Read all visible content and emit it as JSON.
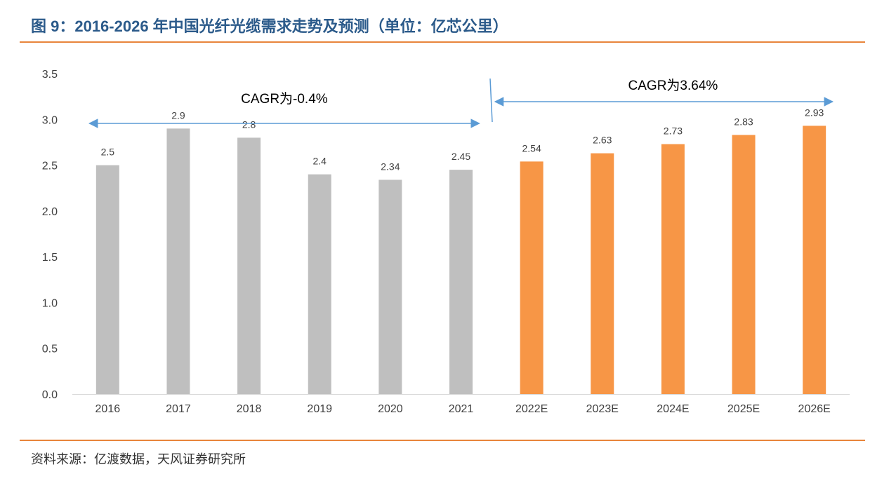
{
  "header": {
    "title": "图 9：2016-2026 年中国光纤光缆需求走势及预测（单位：亿芯公里）"
  },
  "footer": {
    "source": "资料来源：亿渡数据，天风证券研究所"
  },
  "colors": {
    "historical_bar": "#bfbfbf",
    "forecast_bar": "#f79646",
    "accent_rule": "#e8853b",
    "arrow": "#5b9bd5",
    "title": "#2b5a8a"
  },
  "chart_data": {
    "type": "bar",
    "title": "2016-2026 年中国光纤光缆需求走势及预测（单位：亿芯公里）",
    "categories": [
      "2016",
      "2017",
      "2018",
      "2019",
      "2020",
      "2021",
      "2022E",
      "2023E",
      "2024E",
      "2025E",
      "2026E"
    ],
    "values": [
      2.5,
      2.9,
      2.8,
      2.4,
      2.34,
      2.45,
      2.54,
      2.63,
      2.73,
      2.83,
      2.93
    ],
    "value_labels": [
      "2.5",
      "2.9",
      "2.8",
      "2.4",
      "2.34",
      "2.45",
      "2.54",
      "2.63",
      "2.73",
      "2.83",
      "2.93"
    ],
    "forecast": [
      false,
      false,
      false,
      false,
      false,
      false,
      true,
      true,
      true,
      true,
      true
    ],
    "ylim": [
      0,
      3.5
    ],
    "yticks": [
      "0.0",
      "0.5",
      "1.0",
      "1.5",
      "2.0",
      "2.5",
      "3.0",
      "3.5"
    ],
    "xlabel": "",
    "ylabel": "",
    "grid": false,
    "annotations": [
      {
        "text": "CAGR为-0.4%",
        "from": "2016",
        "to": "2021"
      },
      {
        "text": "CAGR为3.64%",
        "from": "2022E",
        "to": "2026E"
      }
    ]
  }
}
